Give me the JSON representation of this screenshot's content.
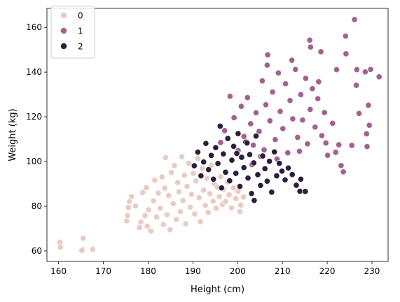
{
  "chart_data": {
    "type": "scatter",
    "title": "",
    "xlabel": "Height (cm)",
    "ylabel": "Weight (kg)",
    "xlim": [
      157.4,
      233.6
    ],
    "ylim": [
      55.3,
      168.5
    ],
    "xticks": [
      160,
      170,
      180,
      190,
      200,
      210,
      220,
      230
    ],
    "yticks": [
      60,
      80,
      100,
      120,
      140,
      160
    ],
    "grid": false,
    "legend": {
      "placement": "top-left",
      "title": ""
    },
    "series": [
      {
        "name": "0",
        "color": "#eacbc3",
        "points": [
          [
            160.3,
            63.9
          ],
          [
            160.4,
            61.7
          ],
          [
            165.4,
            60.7
          ],
          [
            165.5,
            65.7
          ],
          [
            165.2,
            60.2
          ],
          [
            167.6,
            60.7
          ],
          [
            175.2,
            73.5
          ],
          [
            175.4,
            75.8
          ],
          [
            175.6,
            79.4
          ],
          [
            175.8,
            82.1
          ],
          [
            176.3,
            84.3
          ],
          [
            177.2,
            80.1
          ],
          [
            178.1,
            70.5
          ],
          [
            178.4,
            72.9
          ],
          [
            178.8,
            86.1
          ],
          [
            179.3,
            75.8
          ],
          [
            179.6,
            88.3
          ],
          [
            179.8,
            71.1
          ],
          [
            180.1,
            78.4
          ],
          [
            180.6,
            68.9
          ],
          [
            181.2,
            82.4
          ],
          [
            181.5,
            91.6
          ],
          [
            181.9,
            75.2
          ],
          [
            182.3,
            85.9
          ],
          [
            182.7,
            79.1
          ],
          [
            183.1,
            93.1
          ],
          [
            183.4,
            71.8
          ],
          [
            183.7,
            88.1
          ],
          [
            183.9,
            101.8
          ],
          [
            184.2,
            76.2
          ],
          [
            184.6,
            84.8
          ],
          [
            184.9,
            69.5
          ],
          [
            185.2,
            95.1
          ],
          [
            185.6,
            81.2
          ],
          [
            185.9,
            98.2
          ],
          [
            186.3,
            74.1
          ],
          [
            186.6,
            90.6
          ],
          [
            186.9,
            86.4
          ],
          [
            187.2,
            77.6
          ],
          [
            187.5,
            102.1
          ],
          [
            187.8,
            82.5
          ],
          [
            188.1,
            93.8
          ],
          [
            188.4,
            72.1
          ],
          [
            188.7,
            88.9
          ],
          [
            189.1,
            99.2
          ],
          [
            189.4,
            79.6
          ],
          [
            189.7,
            85.3
          ],
          [
            190.1,
            94.7
          ],
          [
            190.4,
            76.5
          ],
          [
            190.7,
            91.3
          ],
          [
            191.1,
            101.3
          ],
          [
            191.4,
            83.8
          ],
          [
            191.7,
            73.1
          ],
          [
            192.1,
            96.9
          ],
          [
            192.4,
            87.2
          ],
          [
            192.8,
            80.4
          ],
          [
            193.1,
            92.5
          ],
          [
            193.4,
            77.2
          ],
          [
            193.8,
            85.6
          ],
          [
            194.1,
            98.4
          ],
          [
            194.5,
            82.3
          ],
          [
            194.8,
            90.1
          ],
          [
            195.2,
            79.1
          ],
          [
            195.5,
            88.6
          ],
          [
            195.9,
            84.3
          ],
          [
            196.2,
            93.2
          ],
          [
            196.6,
            80.9
          ],
          [
            196.9,
            87.6
          ],
          [
            197.3,
            82.1
          ],
          [
            197.7,
            90.8
          ],
          [
            198.1,
            85.1
          ],
          [
            198.6,
            79.3
          ],
          [
            199.1,
            88.2
          ],
          [
            199.6,
            83.4
          ],
          [
            200.1,
            86.7
          ],
          [
            200.7,
            80.5
          ],
          [
            201.3,
            84.1
          ],
          [
            200.5,
            77.6
          ]
        ]
      },
      {
        "name": "1",
        "color": "#a3628e",
        "points": [
          [
            196.2,
            108.5
          ],
          [
            197.1,
            113.8
          ],
          [
            198.3,
            129.2
          ],
          [
            199.2,
            119.6
          ],
          [
            200.1,
            104.9
          ],
          [
            200.8,
            124.7
          ],
          [
            201.4,
            111.2
          ],
          [
            202.2,
            128.6
          ],
          [
            202.9,
            116.9
          ],
          [
            203.5,
            107.3
          ],
          [
            204.1,
            121.8
          ],
          [
            204.8,
            113.5
          ],
          [
            205.5,
            136.1
          ],
          [
            205.9,
            105.2
          ],
          [
            206.3,
            125.4
          ],
          [
            206.7,
            147.7
          ],
          [
            206.6,
            143.1
          ],
          [
            207.2,
            118.2
          ],
          [
            207.8,
            131.1
          ],
          [
            208.4,
            109.8
          ],
          [
            209.1,
            139.6
          ],
          [
            209.5,
            122.4
          ],
          [
            210.1,
            114.7
          ],
          [
            210.7,
            134.8
          ],
          [
            211.2,
            103.9
          ],
          [
            211.7,
            127.3
          ],
          [
            212.3,
            119.1
          ],
          [
            212.9,
            141.2
          ],
          [
            213.4,
            110.8
          ],
          [
            214.1,
            129.9
          ],
          [
            214.5,
            118.6
          ],
          [
            215.2,
            137.2
          ],
          [
            215.6,
            107.9
          ],
          [
            216.1,
            154.3
          ],
          [
            216.3,
            151.2
          ],
          [
            216.2,
            123.3
          ],
          [
            216.7,
            132.6
          ],
          [
            217.3,
            115.4
          ],
          [
            217.9,
            128.1
          ],
          [
            218.6,
            149.1
          ],
          [
            218.8,
            111.6
          ],
          [
            219.4,
            121.9
          ],
          [
            220.1,
            102.8
          ],
          [
            221.2,
            117.1
          ],
          [
            222.1,
            141.1
          ],
          [
            222.6,
            107.5
          ],
          [
            223.1,
            98.2
          ],
          [
            223.6,
            95.4
          ],
          [
            224.1,
            156.1
          ],
          [
            224.2,
            148.2
          ],
          [
            226.1,
            163.5
          ],
          [
            226.5,
            134.1
          ],
          [
            226.6,
            141.1
          ],
          [
            227.1,
            121.5
          ],
          [
            228.5,
            140.1
          ],
          [
            228.8,
            112.4
          ],
          [
            229.2,
            125.2
          ],
          [
            229.4,
            116.2
          ],
          [
            228.9,
            106.7
          ],
          [
            229.7,
            141.2
          ],
          [
            231.6,
            137.9
          ],
          [
            203.2,
            98.6
          ],
          [
            205.1,
            102.3
          ],
          [
            208.8,
            101.1
          ],
          [
            213.8,
            104.6
          ],
          [
            219.7,
            108.3
          ],
          [
            221.9,
            104.1
          ],
          [
            225.5,
            107.2
          ],
          [
            218.1,
            135.7
          ],
          [
            212.1,
            145.3
          ]
        ]
      },
      {
        "name": "2",
        "color": "#2d1e3e",
        "points": [
          [
            190.3,
            98.1
          ],
          [
            191.1,
            104.2
          ],
          [
            191.8,
            93.6
          ],
          [
            192.4,
            99.8
          ],
          [
            192.9,
            108.1
          ],
          [
            193.5,
            96.4
          ],
          [
            194.1,
            102.7
          ],
          [
            194.6,
            92.1
          ],
          [
            195.1,
            106.2
          ],
          [
            195.6,
            99.1
          ],
          [
            196.1,
            115.8
          ],
          [
            196.4,
            88.2
          ],
          [
            196.8,
            103.4
          ],
          [
            197.3,
            95.2
          ],
          [
            197.8,
            110.3
          ],
          [
            198.2,
            91.4
          ],
          [
            198.7,
            100.6
          ],
          [
            199.1,
            106.8
          ],
          [
            199.6,
            94.7
          ],
          [
            200.1,
            112.5
          ],
          [
            200.5,
            88.9
          ],
          [
            200.9,
            101.9
          ],
          [
            201.4,
            97.3
          ],
          [
            201.8,
            108.7
          ],
          [
            202.3,
            92.6
          ],
          [
            202.7,
            103.1
          ],
          [
            203.1,
            85.7
          ],
          [
            203.6,
            99.4
          ],
          [
            204.1,
            111.4
          ],
          [
            204.5,
            94.1
          ],
          [
            205.1,
            89.3
          ],
          [
            205.6,
            102.5
          ],
          [
            206.1,
            96.8
          ],
          [
            206.6,
            91.2
          ],
          [
            207.1,
            100.1
          ],
          [
            207.6,
            86.3
          ],
          [
            208.2,
            104.3
          ],
          [
            208.7,
            93.6
          ],
          [
            209.3,
            99.2
          ],
          [
            209.9,
            95.7
          ],
          [
            210.6,
            91.8
          ],
          [
            211.3,
            97.1
          ],
          [
            212.2,
            94.2
          ],
          [
            213.1,
            89.4
          ],
          [
            214.1,
            92.1
          ],
          [
            213.9,
            86.7
          ],
          [
            215.1,
            86.6
          ],
          [
            203.7,
            82.6
          ],
          [
            202.1,
            108.3
          ],
          [
            199.8,
            103.6
          ]
        ]
      }
    ]
  }
}
